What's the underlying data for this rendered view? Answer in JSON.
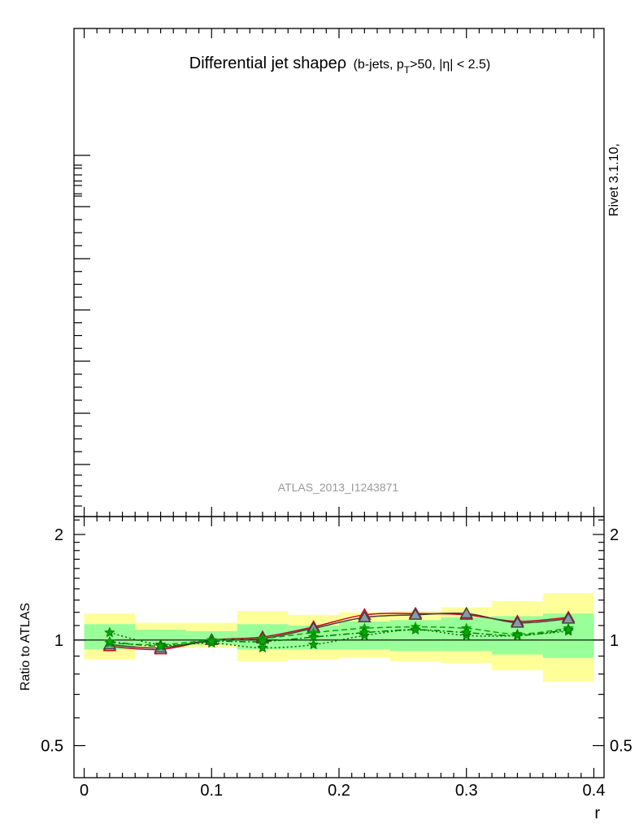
{
  "title": {
    "main": "Differential jet shapeρ",
    "detail_pre": "(b-jets, p",
    "detail_sub": "T",
    "detail_post": ">50, |η| < 2.5)"
  },
  "side_label": "Rivet 3.1.10,",
  "watermark": "ATLAS_2013_I1243871",
  "chart_data": {
    "type": "line",
    "xlabel": "r",
    "ylabel": "Ratio to ATLAS",
    "xlim": [
      -0.008,
      0.408
    ],
    "ylim": [
      0.405,
      2.25
    ],
    "ylog": true,
    "x_ticks": [
      0,
      0.1,
      0.2,
      0.3,
      0.4
    ],
    "x_tick_labels": [
      "0",
      "0.1",
      "0.2",
      "0.3",
      "0.4"
    ],
    "y_ticks": [
      0.5,
      1,
      2
    ],
    "y_tick_labels": [
      "0.5",
      "1",
      "2"
    ],
    "reference_line": 1,
    "bins": [
      [
        0.0,
        0.04
      ],
      [
        0.04,
        0.08
      ],
      [
        0.08,
        0.12
      ],
      [
        0.12,
        0.16
      ],
      [
        0.16,
        0.2
      ],
      [
        0.2,
        0.24
      ],
      [
        0.24,
        0.28
      ],
      [
        0.28,
        0.32
      ],
      [
        0.32,
        0.36
      ],
      [
        0.36,
        0.4
      ]
    ],
    "band_total": {
      "lower": [
        0.88,
        0.95,
        0.95,
        0.87,
        0.88,
        0.89,
        0.87,
        0.86,
        0.82,
        0.76
      ],
      "upper": [
        1.19,
        1.12,
        1.12,
        1.21,
        1.18,
        1.2,
        1.21,
        1.24,
        1.29,
        1.36
      ],
      "color": "#ffff99"
    },
    "band_stat": {
      "lower": [
        0.94,
        0.97,
        0.97,
        0.94,
        0.94,
        0.94,
        0.93,
        0.93,
        0.91,
        0.89
      ],
      "upper": [
        1.11,
        1.07,
        1.06,
        1.11,
        1.1,
        1.13,
        1.14,
        1.16,
        1.17,
        1.19
      ],
      "color": "#99ff99"
    },
    "x": [
      0.02,
      0.06,
      0.1,
      0.14,
      0.18,
      0.22,
      0.26,
      0.3,
      0.34,
      0.38
    ],
    "series": [
      {
        "values": [
          0.96,
          0.94,
          1.0,
          1.02,
          1.09,
          1.18,
          1.19,
          1.18,
          1.13,
          1.16
        ],
        "color": "#cc0022",
        "dash": "solid",
        "marker": "triangle"
      },
      {
        "values": [
          0.97,
          0.95,
          1.0,
          1.01,
          1.08,
          1.16,
          1.18,
          1.19,
          1.12,
          1.15
        ],
        "color": "#404040",
        "dash": "solid",
        "marker": "triangle-filled"
      },
      {
        "values": [
          0.98,
          0.97,
          1.0,
          1.01,
          1.05,
          1.08,
          1.09,
          1.08,
          1.04,
          1.08
        ],
        "color": "#00aa00",
        "dash": "dashed",
        "marker": "star"
      },
      {
        "values": [
          1.05,
          0.97,
          0.98,
          0.95,
          0.97,
          1.03,
          1.07,
          1.03,
          1.03,
          1.06
        ],
        "color": "#006600",
        "dash": "dotted",
        "marker": "star"
      },
      {
        "values": [
          0.99,
          0.96,
          0.99,
          0.99,
          1.02,
          1.05,
          1.07,
          1.05,
          1.03,
          1.07
        ],
        "color": "#007700",
        "dash": "dashdot",
        "marker": "star"
      }
    ]
  }
}
